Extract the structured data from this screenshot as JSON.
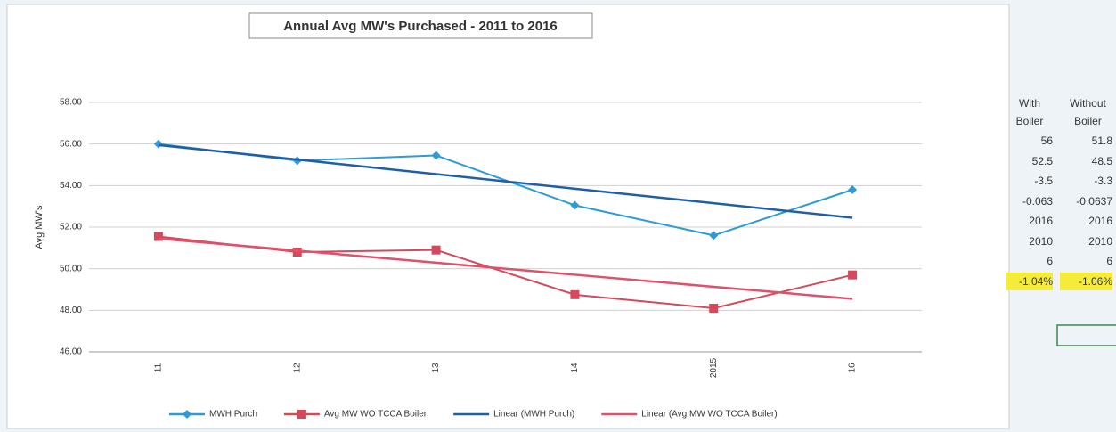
{
  "chart_data": {
    "type": "line",
    "title": "Annual Avg MW's Purchased - 2011 to 2016",
    "y_label": "Avg MW's",
    "categories": [
      "11",
      "12",
      "13",
      "14",
      "2015",
      "16"
    ],
    "ylim": [
      46,
      58
    ],
    "yticks": [
      {
        "value": 46,
        "label": "46.00"
      },
      {
        "value": 48,
        "label": "48.00"
      },
      {
        "value": 50,
        "label": "50.00"
      },
      {
        "value": 52,
        "label": "52.00"
      },
      {
        "value": 54,
        "label": "54.00"
      },
      {
        "value": 56,
        "label": "56.00"
      },
      {
        "value": 58,
        "label": "58.00"
      }
    ],
    "grid": true,
    "legend": "bottom",
    "series": [
      {
        "name": "MWH Purch",
        "color": "#2e9bd6",
        "marker": "diamond",
        "values": [
          56.0,
          55.2,
          55.45,
          53.05,
          51.6,
          53.8
        ]
      },
      {
        "name": "Avg MW WO TCCA Boiler",
        "color": "#d44a5c",
        "marker": "square",
        "values": [
          51.55,
          50.8,
          50.9,
          48.75,
          48.1,
          49.7
        ]
      },
      {
        "name": "Linear (MWH Purch)",
        "color": "#1f5fa8",
        "values": [
          55.95,
          55.25,
          54.55,
          53.85,
          53.15,
          52.45
        ]
      },
      {
        "name": "Linear (Avg MW WO TCCA Boiler)",
        "color": "#e0506a",
        "values": [
          51.45,
          50.87,
          50.29,
          49.71,
          49.13,
          48.55
        ]
      }
    ]
  },
  "table": {
    "header": [
      "With Boiler",
      "Without Boiler"
    ],
    "rows": [
      [
        "56",
        "51.8"
      ],
      [
        "52.5",
        "48.5"
      ],
      [
        "-3.5",
        "-3.3"
      ],
      [
        "-0.063",
        "-0.0637"
      ],
      [
        "2016",
        "2016"
      ],
      [
        "2010",
        "2010"
      ],
      [
        "6",
        "6"
      ],
      [
        "-1.04%",
        "-1.06%"
      ]
    ]
  }
}
